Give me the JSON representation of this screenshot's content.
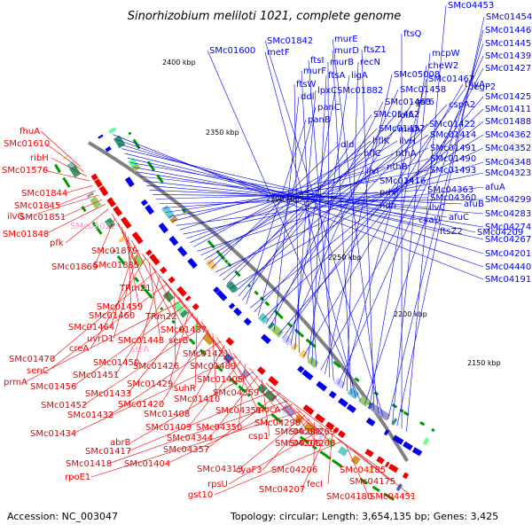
{
  "title": "Sinorhizobium meliloti 1021, complete genome",
  "footer": {
    "accession": "Accession: NC_003047",
    "summary": "Topology: circular; Length: 3,654,135 bp; Genes: 3,425"
  },
  "colors": {
    "forward": "#0000ee",
    "reverse": "#ee0000",
    "backbone": "#808080",
    "pseudo": "#ff99cc",
    "tick_mark": "#008800"
  },
  "ticks": [
    "2400 kbp",
    "2350 kbp",
    "2300 kbp",
    "2250 kbp",
    "2200 kbp",
    "2150 kbp"
  ],
  "forward_labels": [
    "SMc04453",
    "ftsQ",
    "SMc01454",
    "mcpW",
    "SMc01446",
    "SMc01842",
    "murE",
    "ftsZ1",
    "cheW2",
    "SMc01445",
    "SMc01600",
    "metF",
    "murD",
    "recN",
    "SMc01467",
    "SMc01439",
    "ftsI",
    "murB",
    "SMc05008",
    "SMc01427",
    "murF",
    "ftsA",
    "ligA",
    "thyA",
    "ftsW",
    "lpxC",
    "SMc01882",
    "SMc01458",
    "degP2",
    "SMc01425",
    "ddl",
    "SMc01463",
    "gst6",
    "SMc01411",
    "panC",
    "cspA2",
    "SMc01488",
    "panB",
    "SMc01462",
    "folA",
    "SMc01422",
    "SMc04362",
    "SMc01457",
    "miaA",
    "SMc01414",
    "SMc04352",
    "dld",
    "hflK",
    "ilvH",
    "SMc01491",
    "SMc04348",
    "hflC",
    "nthA",
    "SMc01490",
    "SMc04323",
    "nthB",
    "afuA",
    "ilvI",
    "SMc01493",
    "SMc01416",
    "SMc04363",
    "SMc04299",
    "pdxJ",
    "SMc04360",
    "afuB",
    "SMc04283",
    "ndh",
    "ilvC",
    "SMc04274",
    "cyaU",
    "afuC",
    "SMc04267",
    "ftsZ2",
    "SMc04209",
    "SMc04201",
    "SMc04440",
    "SMc04191"
  ],
  "reverse_labels": [
    "fhuA",
    "SMc01610",
    "ribH",
    "SMc01576",
    "SMc01844",
    "SMc01845",
    "ilvG",
    "SMc01851",
    "SMc01848",
    "pfk",
    "SMc01879",
    "SMc01869",
    "SMc01885",
    "TRm21",
    "SMc01459",
    "SMc01460",
    "TRm22",
    "SMc01464",
    "uvrD1",
    "SMc01437",
    "creA",
    "SMc01448",
    "serB",
    "SMc01470",
    "SMc01450",
    "SMc01421",
    "senC",
    "SMc01451",
    "SMc01426",
    "SMc01489",
    "prmA",
    "SMc01456",
    "SMc01429",
    "SMc01433",
    "suhR",
    "SMc01405",
    "SMc01452",
    "SMc01420",
    "SMc01410",
    "SMc04359",
    "SMc01432",
    "SMc01408",
    "SMc04351",
    "mocA",
    "SMc01434",
    "SMc01409",
    "SMc04350",
    "SMc04298",
    "abrB",
    "SMc04344",
    "csp1",
    "SMc04291",
    "SMc04269",
    "SMc01417",
    "SMc04357",
    "SMc04205",
    "SMc01418",
    "SMc01404",
    "SMc04208",
    "rpoE1",
    "SMc04319",
    "cyaF3",
    "SMc04206",
    "SMc04185",
    "rpsU",
    "SMc04207",
    "fecI",
    "SMc04175",
    "gst10",
    "SMc04180",
    "SMc04451"
  ],
  "pseudo_labels": [
    "SMc05022",
    "ssrA"
  ]
}
